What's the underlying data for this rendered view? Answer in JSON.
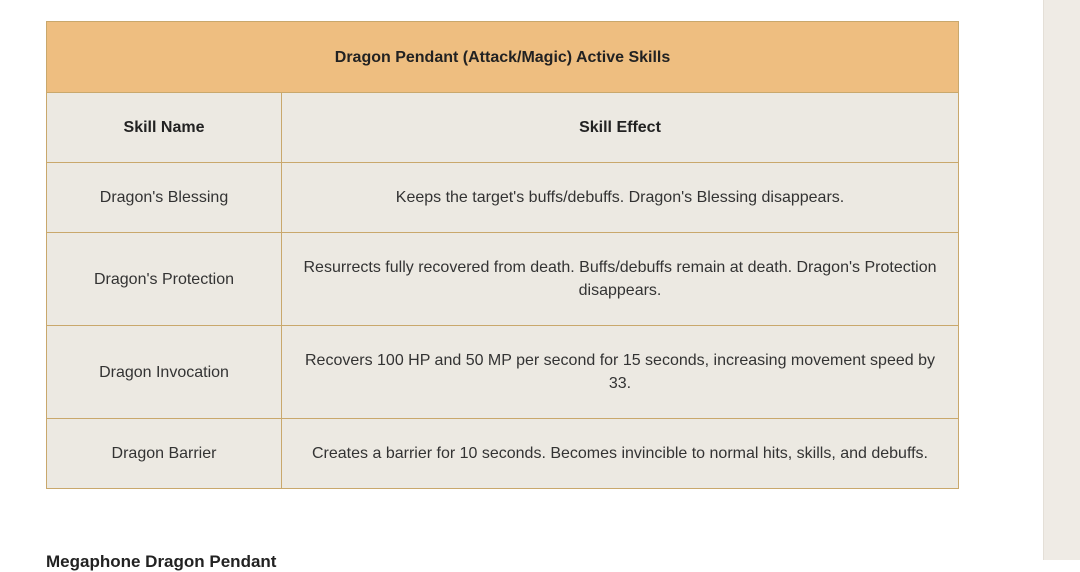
{
  "table": {
    "title": "Dragon Pendant (Attack/Magic) Active Skills",
    "headers": {
      "name": "Skill Name",
      "effect": "Skill Effect"
    },
    "rows": [
      {
        "name": "Dragon's Blessing",
        "effect": "Keeps the target's buffs/debuffs. Dragon's Blessing disappears."
      },
      {
        "name": "Dragon's Protection",
        "effect": "Resurrects fully recovered from death. Buffs/debuffs remain at death. Dragon's Protection disappears."
      },
      {
        "name": "Dragon Invocation",
        "effect": "Recovers 100 HP and 50 MP per second for 15 seconds, increasing movement speed by 33."
      },
      {
        "name": "Dragon Barrier",
        "effect": "Creates a barrier for 10 seconds. Becomes invincible to normal hits, skills, and debuffs."
      }
    ]
  },
  "next_heading": "Megaphone Dragon Pendant",
  "colors": {
    "title_bg": "#eebe80",
    "cell_bg": "#ece9e2",
    "border": "#c9a86c",
    "side_panel": "#efebe5"
  }
}
